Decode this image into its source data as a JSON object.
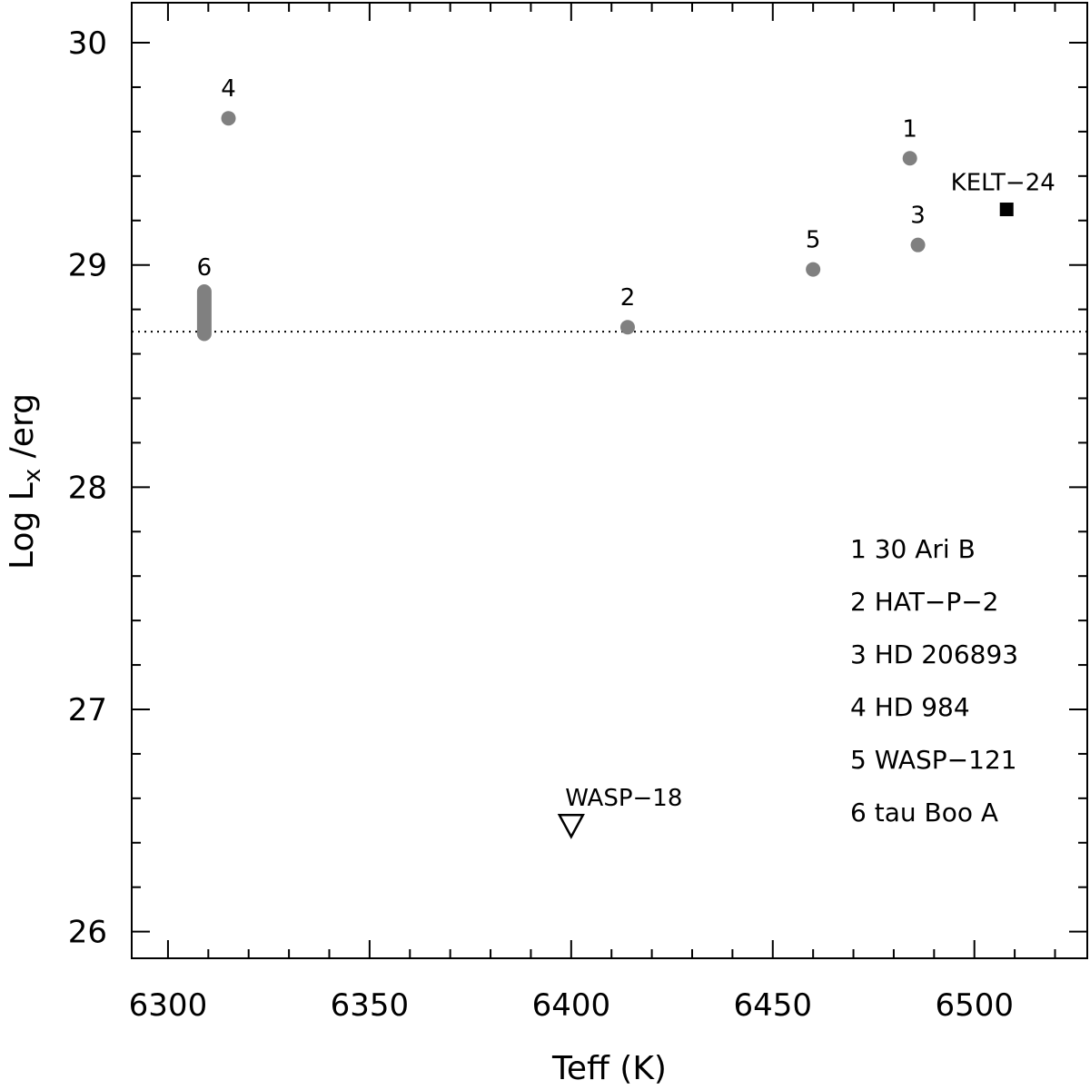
{
  "chart_data": {
    "type": "scatter",
    "xlabel": "Teff (K)",
    "ylabel_parts": [
      "Log L",
      "x",
      " /erg"
    ],
    "xlim": [
      6291,
      6528
    ],
    "ylim": [
      25.88,
      30.18
    ],
    "x_ticks": [
      6300,
      6350,
      6400,
      6450,
      6500
    ],
    "y_ticks": [
      26,
      27,
      28,
      29,
      30
    ],
    "x_minor_step": 10,
    "y_minor_step": 0.2,
    "reference_line": {
      "y": 28.7,
      "style": "dotted"
    },
    "series": [
      {
        "marker": "circle",
        "color": "#808080",
        "points": [
          {
            "label": "1",
            "x": 6484,
            "y": 29.48
          },
          {
            "label": "2",
            "x": 6414,
            "y": 28.72
          },
          {
            "label": "3",
            "x": 6486,
            "y": 29.09
          },
          {
            "label": "4",
            "x": 6315,
            "y": 29.66
          },
          {
            "label": "5",
            "x": 6460,
            "y": 28.98
          }
        ]
      },
      {
        "marker": "range-bar",
        "color": "#808080",
        "points": [
          {
            "label": "6",
            "x": 6309,
            "y_min": 28.69,
            "y_max": 28.88
          }
        ]
      },
      {
        "marker": "square",
        "color": "#000000",
        "points": [
          {
            "label": "KELT−24",
            "x": 6508,
            "y": 29.25
          }
        ]
      },
      {
        "marker": "triangle-down-open",
        "color": "#000000",
        "points": [
          {
            "label": "WASP−18",
            "x": 6400,
            "y": 26.48
          }
        ]
      }
    ],
    "legend": [
      "1  30 Ari B",
      "2  HAT−P−2",
      "3  HD 206893",
      "4  HD 984",
      "5  WASP−121",
      "6  tau Boo A"
    ]
  }
}
